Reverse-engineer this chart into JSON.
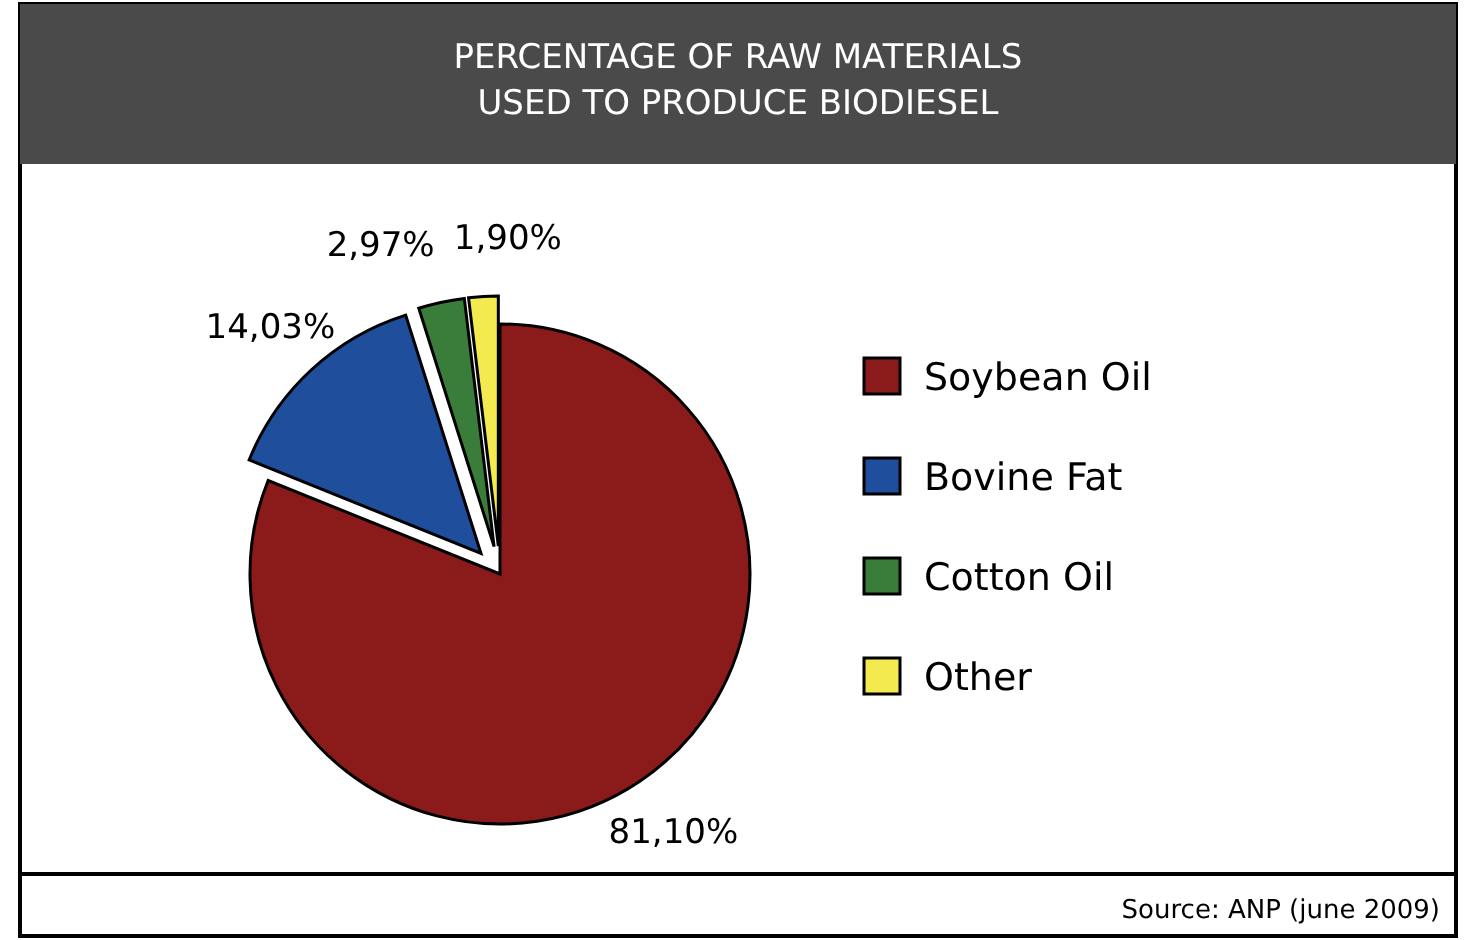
{
  "chart_data": {
    "type": "pie",
    "title": "PERCENTAGE OF RAW MATERIALS\nUSED TO PRODUCE BIODIESEL",
    "categories": [
      "Soybean Oil",
      "Bovine Fat",
      "Cotton Oil",
      "Other"
    ],
    "values": [
      81.1,
      14.03,
      2.97,
      1.9
    ],
    "colors": [
      "#8b1a1a",
      "#1f4e9c",
      "#3a7d3a",
      "#f2ea4e"
    ],
    "value_labels": [
      "81,10%",
      "14,03%",
      "2,97%",
      "1,90%"
    ],
    "legend": "right",
    "annotations": [
      "Source: ANP (june 2009)"
    ]
  }
}
